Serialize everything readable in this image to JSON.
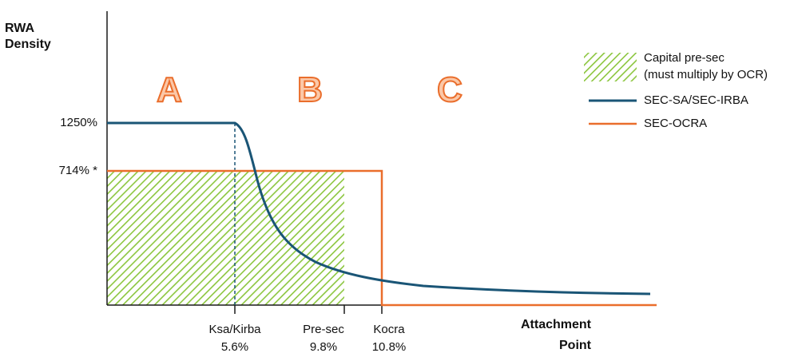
{
  "axis": {
    "y_title_line1": "RWA",
    "y_title_line2": "Density",
    "x_title_line1": "Attachment",
    "x_title_line2": "Point"
  },
  "y_ticks": {
    "top": "1250%",
    "mid": "714% *"
  },
  "x_ticks": [
    {
      "name": "Ksa/Kirba",
      "value": "5.6%"
    },
    {
      "name": "Pre-sec",
      "value": "9.8%"
    },
    {
      "name": "Kocra",
      "value": "10.8%"
    }
  ],
  "zones": [
    "A",
    "B",
    "C"
  ],
  "legend": {
    "hatch_line1": "Capital pre-sec",
    "hatch_line2": "(must multiply by OCR)",
    "blue": "SEC-SA/SEC-IRBA",
    "orange": "SEC-OCRA"
  },
  "colors": {
    "blue": "#1a5576",
    "orange": "#ea6e2c",
    "hatch": "#8cc63f"
  }
}
